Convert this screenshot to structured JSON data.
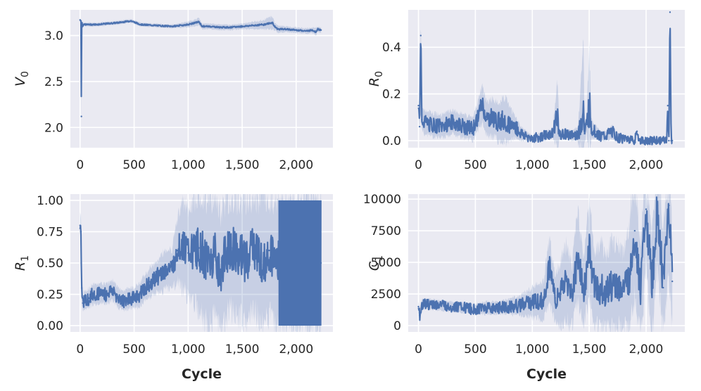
{
  "chart_data": [
    {
      "type": "line",
      "ylabel": "V",
      "ylabel_sub": "0",
      "xlabel": "",
      "xlim": [
        -90,
        2340
      ],
      "ylim": [
        1.78,
        3.28
      ],
      "xticks": [
        0,
        500,
        1000,
        1500,
        2000
      ],
      "xtick_labels": [
        "0",
        "500",
        "1,000",
        "1,500",
        "2,000"
      ],
      "yticks": [
        2.0,
        2.5,
        3.0
      ],
      "ytick_labels": [
        "2.0",
        "2.5",
        "3.0"
      ],
      "grid": true,
      "series": [
        {
          "x": [
            0,
            8,
            12,
            15,
            18,
            22,
            30,
            60,
            150,
            250,
            350,
            470,
            560,
            700,
            850,
            1000,
            1100,
            1130,
            1200,
            1300,
            1400,
            1500,
            1600,
            1700,
            1780,
            1800,
            1830,
            1900,
            2000,
            2100,
            2150,
            2180,
            2200,
            2230
          ],
          "y": [
            3.17,
            3.16,
            2.12,
            3.12,
            3.14,
            3.1,
            3.12,
            3.12,
            3.12,
            3.13,
            3.14,
            3.16,
            3.12,
            3.11,
            3.1,
            3.12,
            3.15,
            3.1,
            3.1,
            3.09,
            3.09,
            3.1,
            3.11,
            3.12,
            3.14,
            3.1,
            3.07,
            3.07,
            3.06,
            3.05,
            3.06,
            3.04,
            3.07,
            3.06
          ],
          "band_halfwidth": [
            0.01,
            0.01,
            0.3,
            0.02,
            0.02,
            0.02,
            0.02,
            0.02,
            0.02,
            0.02,
            0.02,
            0.02,
            0.02,
            0.02,
            0.02,
            0.03,
            0.04,
            0.03,
            0.03,
            0.03,
            0.03,
            0.03,
            0.04,
            0.05,
            0.07,
            0.04,
            0.04,
            0.03,
            0.03,
            0.03,
            0.03,
            0.04,
            0.03,
            0.03
          ]
        }
      ]
    },
    {
      "type": "line",
      "ylabel": "R",
      "ylabel_sub": "0",
      "xlabel": "",
      "xlim": [
        -90,
        2340
      ],
      "ylim": [
        -0.03,
        0.56
      ],
      "xticks": [
        0,
        500,
        1000,
        1500,
        2000
      ],
      "xtick_labels": [
        "0",
        "500",
        "1,000",
        "1,500",
        "2,000"
      ],
      "yticks": [
        0.0,
        0.2,
        0.4
      ],
      "ytick_labels": [
        "0.0",
        "0.2",
        "0.4"
      ],
      "grid": true,
      "series": [
        {
          "x": [
            0,
            10,
            20,
            30,
            50,
            100,
            200,
            300,
            400,
            480,
            520,
            560,
            600,
            650,
            700,
            760,
            800,
            850,
            900,
            950,
            1000,
            1100,
            1180,
            1220,
            1240,
            1300,
            1350,
            1400,
            1450,
            1460,
            1480,
            1500,
            1520,
            1550,
            1600,
            1650,
            1700,
            1750,
            1800,
            1850,
            1900,
            1920,
            1940,
            2000,
            2100,
            2180,
            2190,
            2200,
            2210,
            2220,
            2230
          ],
          "y": [
            0.15,
            0.06,
            0.45,
            0.09,
            0.08,
            0.07,
            0.06,
            0.08,
            0.06,
            0.05,
            0.1,
            0.16,
            0.09,
            0.1,
            0.08,
            0.09,
            0.07,
            0.06,
            0.03,
            0.02,
            0.01,
            0.02,
            0.03,
            0.12,
            0.02,
            0.03,
            0.02,
            0.03,
            0.12,
            0.03,
            0.08,
            0.15,
            0.05,
            0.04,
            0.02,
            0.02,
            0.04,
            0.01,
            0.01,
            0.01,
            0.0,
            0.04,
            0.0,
            0.0,
            0.0,
            0.0,
            0.15,
            0.0,
            0.55,
            0.0,
            0.0
          ],
          "band_halfwidth": [
            0.03,
            0.03,
            0.1,
            0.04,
            0.05,
            0.05,
            0.05,
            0.05,
            0.05,
            0.05,
            0.06,
            0.08,
            0.07,
            0.08,
            0.08,
            0.1,
            0.07,
            0.05,
            0.03,
            0.02,
            0.01,
            0.02,
            0.02,
            0.15,
            0.02,
            0.02,
            0.02,
            0.03,
            0.28,
            0.03,
            0.05,
            0.28,
            0.04,
            0.03,
            0.02,
            0.02,
            0.03,
            0.01,
            0.01,
            0.01,
            0.0,
            0.0,
            0.0,
            0.0,
            0.0,
            0.0,
            0.0,
            0.0,
            0.0,
            0.0,
            0.0
          ]
        }
      ]
    },
    {
      "type": "line",
      "ylabel": "R",
      "ylabel_sub": "1",
      "xlabel": "Cycle",
      "xlim": [
        -90,
        2340
      ],
      "ylim": [
        -0.05,
        1.05
      ],
      "xticks": [
        0,
        500,
        1000,
        1500,
        2000
      ],
      "xtick_labels": [
        "0",
        "500",
        "1,000",
        "1,500",
        "2,000"
      ],
      "yticks": [
        0.0,
        0.25,
        0.5,
        0.75,
        1.0
      ],
      "ytick_labels": [
        "0.00",
        "0.25",
        "0.50",
        "0.75",
        "1.00"
      ],
      "grid": true,
      "series": [
        {
          "x": [
            0,
            8,
            15,
            25,
            40,
            80,
            120,
            180,
            240,
            300,
            350,
            400,
            450,
            500,
            550,
            600,
            650,
            700,
            750,
            800,
            850,
            900,
            950,
            1000,
            1050,
            1100,
            1150,
            1200,
            1250,
            1300,
            1350,
            1400,
            1450,
            1500,
            1550,
            1600,
            1650,
            1700,
            1750,
            1800,
            1850,
            1900,
            1950,
            2000,
            2050,
            2100,
            2150,
            2200,
            2230
          ],
          "y": [
            0.8,
            0.75,
            0.3,
            0.18,
            0.2,
            0.22,
            0.25,
            0.26,
            0.25,
            0.28,
            0.22,
            0.2,
            0.22,
            0.22,
            0.25,
            0.3,
            0.35,
            0.38,
            0.42,
            0.45,
            0.45,
            0.6,
            0.65,
            0.58,
            0.6,
            0.62,
            0.55,
            0.5,
            0.6,
            0.4,
            0.58,
            0.62,
            0.6,
            0.55,
            0.5,
            0.65,
            0.55,
            0.5,
            0.6,
            0.5,
            0.5,
            0.5,
            0.5,
            0.5,
            0.5,
            0.5,
            0.5,
            0.5,
            0.5
          ],
          "band_halfwidth": [
            0.05,
            0.05,
            0.1,
            0.07,
            0.07,
            0.08,
            0.08,
            0.08,
            0.08,
            0.08,
            0.08,
            0.08,
            0.08,
            0.08,
            0.1,
            0.1,
            0.12,
            0.12,
            0.15,
            0.15,
            0.15,
            0.25,
            0.35,
            0.35,
            0.4,
            0.5,
            0.5,
            0.5,
            0.5,
            0.5,
            0.5,
            0.5,
            0.5,
            0.5,
            0.5,
            0.5,
            0.5,
            0.5,
            0.5,
            0.5,
            0.5,
            0.5,
            0.5,
            0.5,
            0.5,
            0.5,
            0.5,
            0.5,
            0.5
          ],
          "band_max_y": [
            1.0,
            1.0,
            0.4,
            0.25,
            0.27,
            0.3,
            0.33,
            0.34,
            0.33,
            0.36,
            0.3,
            0.28,
            0.3,
            0.3,
            0.35,
            0.4,
            0.47,
            0.5,
            0.57,
            0.6,
            0.6,
            0.85,
            1.0,
            0.93,
            1.0,
            1.0,
            1.0,
            1.0,
            1.0,
            0.9,
            1.0,
            1.0,
            1.0,
            1.0,
            1.0,
            1.0,
            1.0,
            1.0,
            1.0,
            1.0,
            1.0,
            1.0,
            1.0,
            1.0,
            1.0,
            1.0,
            1.0,
            1.0,
            1.0
          ],
          "oscillation_range": [
            1840,
            2230
          ],
          "oscillation_values": [
            0.0,
            1.0
          ]
        }
      ]
    },
    {
      "type": "line",
      "ylabel": "C",
      "ylabel_sub": "1",
      "xlabel": "Cycle",
      "xlim": [
        -90,
        2340
      ],
      "ylim": [
        -500,
        10400
      ],
      "xticks": [
        0,
        500,
        1000,
        1500,
        2000
      ],
      "xtick_labels": [
        "0",
        "500",
        "1,000",
        "1,500",
        "2,000"
      ],
      "yticks": [
        0,
        2500,
        5000,
        7500,
        10000
      ],
      "ytick_labels": [
        "0",
        "2500",
        "5000",
        "7500",
        "10000"
      ],
      "grid": true,
      "series": [
        {
          "x": [
            0,
            10,
            30,
            100,
            200,
            300,
            400,
            500,
            600,
            700,
            800,
            900,
            1000,
            1100,
            1150,
            1200,
            1250,
            1300,
            1350,
            1400,
            1450,
            1500,
            1550,
            1600,
            1650,
            1700,
            1750,
            1800,
            1850,
            1900,
            1950,
            2000,
            2050,
            2100,
            2150,
            2200,
            2230
          ],
          "y": [
            1500,
            800,
            1700,
            1700,
            1600,
            1500,
            1400,
            1300,
            1400,
            1400,
            1500,
            1600,
            1800,
            2000,
            4500,
            2200,
            2500,
            3500,
            2300,
            5500,
            2600,
            6000,
            2800,
            3000,
            2500,
            3200,
            3000,
            2700,
            3500,
            7500,
            2500,
            9200,
            3000,
            9500,
            3000,
            9500,
            3500
          ],
          "band_halfwidth": [
            400,
            500,
            400,
            400,
            400,
            400,
            400,
            400,
            500,
            500,
            600,
            800,
            1200,
            1500,
            2500,
            1800,
            2500,
            3000,
            2500,
            3500,
            2500,
            4000,
            3000,
            3500,
            3000,
            3500,
            3500,
            3000,
            4000,
            5000,
            3500,
            5000,
            4000,
            5000,
            4000,
            5000,
            4000
          ]
        }
      ]
    }
  ]
}
